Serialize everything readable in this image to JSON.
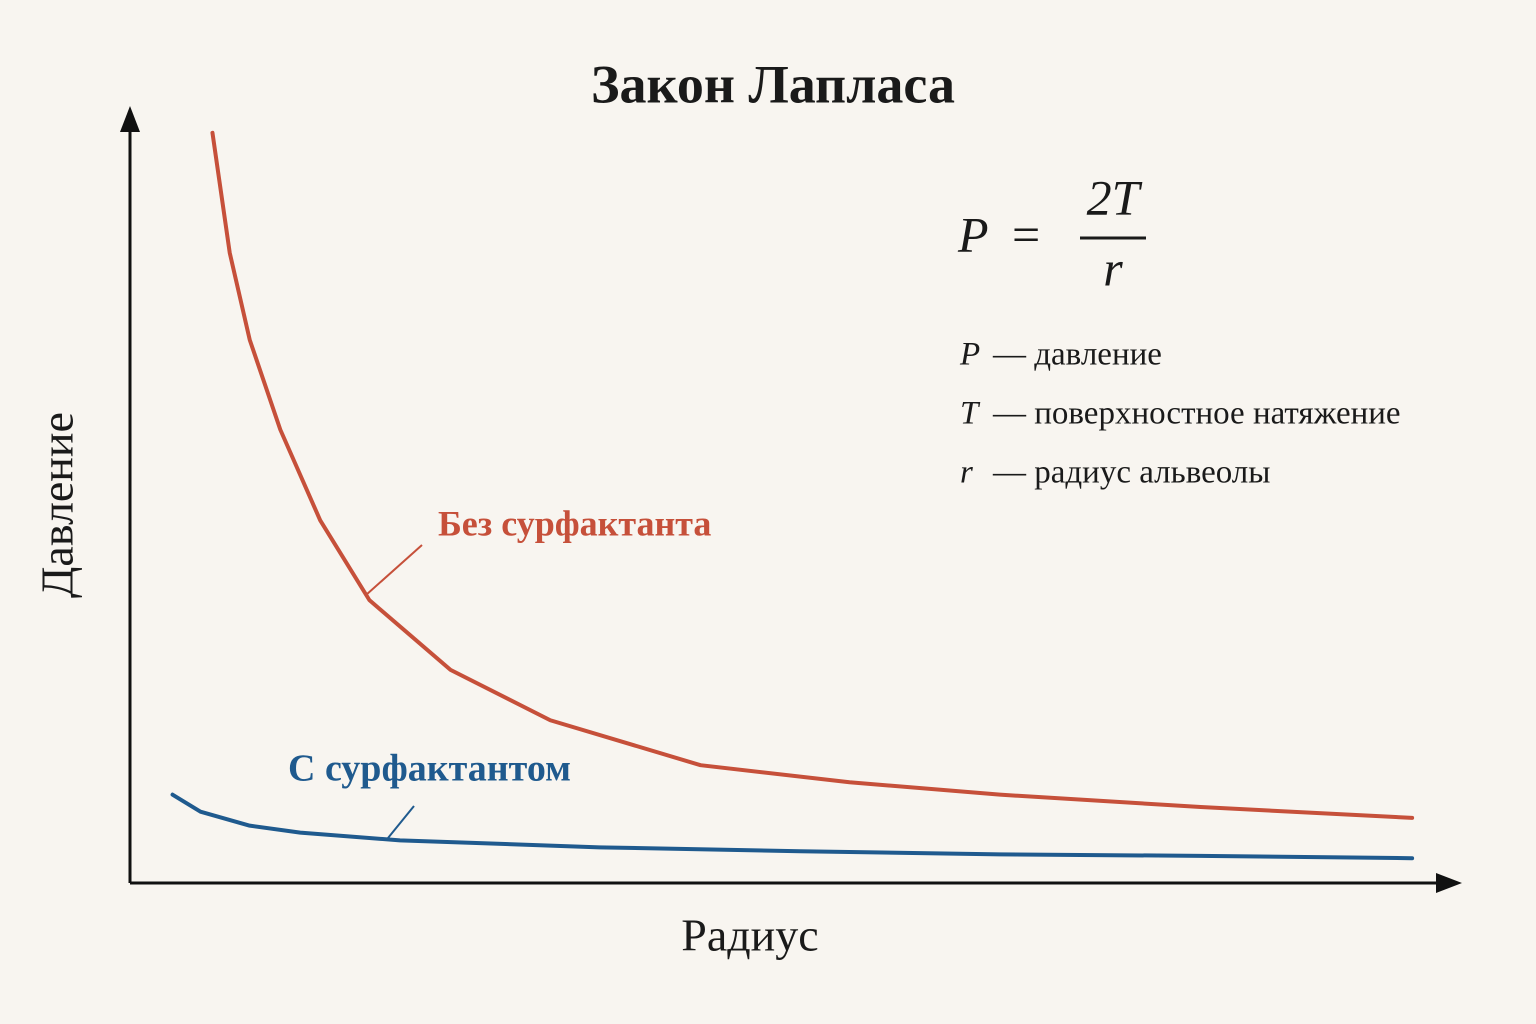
{
  "chart_data": {
    "type": "line",
    "title": "Закон Лапласа",
    "x_label": "Радиус",
    "y_label": "Давление",
    "xlim": [
      0,
      100
    ],
    "ylim": [
      0,
      100
    ],
    "series": [
      {
        "name": "Без сурфактанта",
        "color": "#c6503a",
        "x": [
          6.2,
          7.5,
          9.0,
          11.3,
          14.3,
          18.0,
          24.1,
          31.6,
          42.9,
          54.1,
          65.4,
          80.5,
          96.4
        ],
        "values": [
          96.8,
          81.3,
          70.1,
          58.5,
          46.8,
          36.5,
          27.5,
          21.0,
          15.2,
          13.0,
          11.4,
          9.8,
          8.4
        ]
      },
      {
        "name": "С сурфактантом",
        "color": "#1f5a8e",
        "x": [
          3.2,
          5.3,
          9.0,
          12.8,
          20.3,
          35.3,
          50.4,
          65.4,
          80.5,
          96.4
        ],
        "values": [
          11.4,
          9.2,
          7.4,
          6.5,
          5.5,
          4.6,
          4.1,
          3.7,
          3.5,
          3.2
        ]
      }
    ],
    "formula": {
      "lhs": "P",
      "equals": "=",
      "numerator": "2T",
      "denominator": "r"
    },
    "definitions": [
      {
        "symbol": "P",
        "text": "— давление"
      },
      {
        "symbol": "T",
        "text": "— поверхностное натяжение"
      },
      {
        "symbol": "r",
        "text": "— радиус альвеолы"
      }
    ]
  }
}
